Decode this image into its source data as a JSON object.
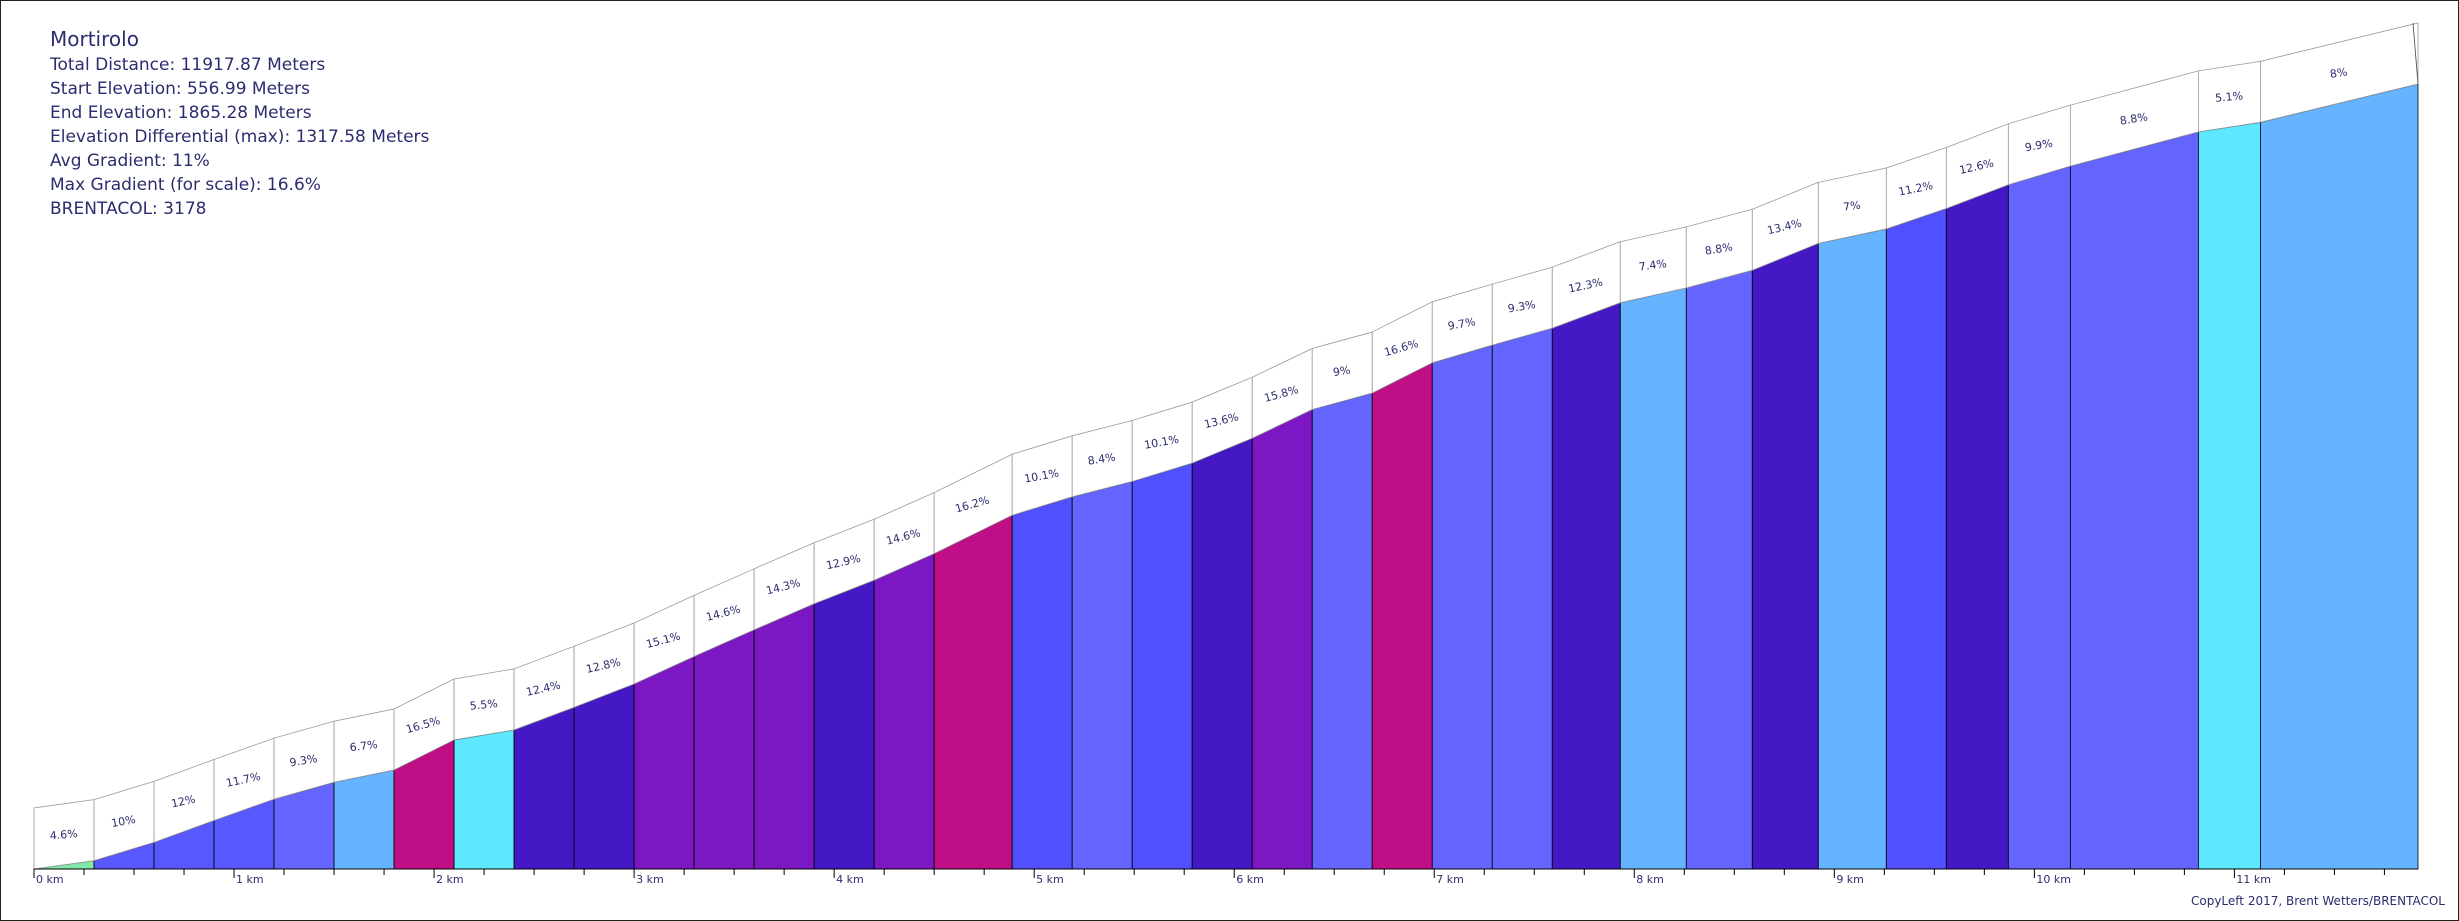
{
  "info": {
    "title": "Mortirolo",
    "total_distance": "Total Distance: 11917.87 Meters",
    "start_elevation": "Start Elevation: 556.99 Meters",
    "end_elevation": "End Elevation: 1865.28 Meters",
    "elevation_differential": "Elevation Differential (max): 1317.58 Meters",
    "avg_gradient": "Avg Gradient: 11%",
    "max_gradient": "Max Gradient (for scale): 16.6%",
    "brentacol": "BRENTACOL: 3178"
  },
  "copyleft": "CopyLeft 2017, Brent Wetters/BRENTACOL",
  "chart_data": {
    "type": "area",
    "title": "Mortirolo",
    "xlabel": "",
    "ylabel": "",
    "x_unit": "km",
    "x_range_m": [
      0,
      11917.87
    ],
    "y_range_m": [
      556.99,
      1874.57
    ],
    "grid": false,
    "km_ticks": [
      "0 km",
      "1 km",
      "2 km",
      "3 km",
      "4 km",
      "5 km",
      "6 km",
      "7 km",
      "8 km",
      "9 km",
      "10 km",
      "11 km"
    ],
    "minor_tick_spacing_km": 0.25,
    "segment_length_m": 300,
    "segments": [
      {
        "label": "4.6%",
        "gradient": 4.6,
        "color": "#80e8a8",
        "end_m": 300
      },
      {
        "label": "10%",
        "gradient": 10,
        "color": "#5858ff",
        "end_m": 600
      },
      {
        "label": "12%",
        "gradient": 12,
        "color": "#5858ff",
        "end_m": 900
      },
      {
        "label": "11.7%",
        "gradient": 11.7,
        "color": "#5858ff",
        "end_m": 1200
      },
      {
        "label": "9.3%",
        "gradient": 9.3,
        "color": "#6464ff",
        "end_m": 1500
      },
      {
        "label": "6.7%",
        "gradient": 6.7,
        "color": "#66b4ff",
        "end_m": 1800
      },
      {
        "label": "16.5%",
        "gradient": 16.5,
        "color": "#c00e87",
        "end_m": 2100
      },
      {
        "label": "5.5%",
        "gradient": 5.5,
        "color": "#5ee8ff",
        "end_m": 2400
      },
      {
        "label": "12.4%",
        "gradient": 12.4,
        "color": "#4418c4",
        "end_m": 2700
      },
      {
        "label": "12.8%",
        "gradient": 12.8,
        "color": "#4418c4",
        "end_m": 3000
      },
      {
        "label": "15.1%",
        "gradient": 15.1,
        "color": "#7b18c4",
        "end_m": 3300
      },
      {
        "label": "14.6%",
        "gradient": 14.6,
        "color": "#7b18c4",
        "end_m": 3600
      },
      {
        "label": "14.3%",
        "gradient": 14.3,
        "color": "#7b18c4",
        "end_m": 3900
      },
      {
        "label": "12.9%",
        "gradient": 12.9,
        "color": "#4418c4",
        "end_m": 4200
      },
      {
        "label": "14.6%",
        "gradient": 14.6,
        "color": "#7b18c4",
        "end_m": 4500
      },
      {
        "label": "16.2%",
        "gradient": 16.2,
        "color": "#c00e87",
        "end_m": 4890
      },
      {
        "label": "10.1%",
        "gradient": 10.1,
        "color": "#5050ff",
        "end_m": 5190
      },
      {
        "label": "8.4%",
        "gradient": 8.4,
        "color": "#6464ff",
        "end_m": 5490
      },
      {
        "label": "10.1%",
        "gradient": 10.1,
        "color": "#5050ff",
        "end_m": 5790
      },
      {
        "label": "13.6%",
        "gradient": 13.6,
        "color": "#4418c4",
        "end_m": 6090
      },
      {
        "label": "15.8%",
        "gradient": 15.8,
        "color": "#7b18c4",
        "end_m": 6390
      },
      {
        "label": "9%",
        "gradient": 9,
        "color": "#6464ff",
        "end_m": 6690
      },
      {
        "label": "16.6%",
        "gradient": 16.6,
        "color": "#c00e87",
        "end_m": 6990
      },
      {
        "label": "9.7%",
        "gradient": 9.7,
        "color": "#6464ff",
        "end_m": 7290
      },
      {
        "label": "9.3%",
        "gradient": 9.3,
        "color": "#6464ff",
        "end_m": 7590
      },
      {
        "label": "12.3%",
        "gradient": 12.3,
        "color": "#4418c4",
        "end_m": 7930
      },
      {
        "label": "7.4%",
        "gradient": 7.4,
        "color": "#66b4ff",
        "end_m": 8260
      },
      {
        "label": "8.8%",
        "gradient": 8.8,
        "color": "#6464ff",
        "end_m": 8590
      },
      {
        "label": "13.4%",
        "gradient": 13.4,
        "color": "#4418c4",
        "end_m": 8920
      },
      {
        "label": "7%",
        "gradient": 7,
        "color": "#66b4ff",
        "end_m": 9260
      },
      {
        "label": "11.2%",
        "gradient": 11.2,
        "color": "#5050ff",
        "end_m": 9560
      },
      {
        "label": "12.6%",
        "gradient": 12.6,
        "color": "#4418c4",
        "end_m": 9870
      },
      {
        "label": "9.9%",
        "gradient": 9.9,
        "color": "#6464ff",
        "end_m": 10180
      },
      {
        "label": "8.8%",
        "gradient": 8.8,
        "color": "#6464ff",
        "end_m": 10820
      },
      {
        "label": "5.1%",
        "gradient": 5.1,
        "color": "#5ee8ff",
        "end_m": 11130
      },
      {
        "label": "8%",
        "gradient": 8,
        "color": "#66b4ff",
        "end_m": 11917.87
      }
    ]
  }
}
